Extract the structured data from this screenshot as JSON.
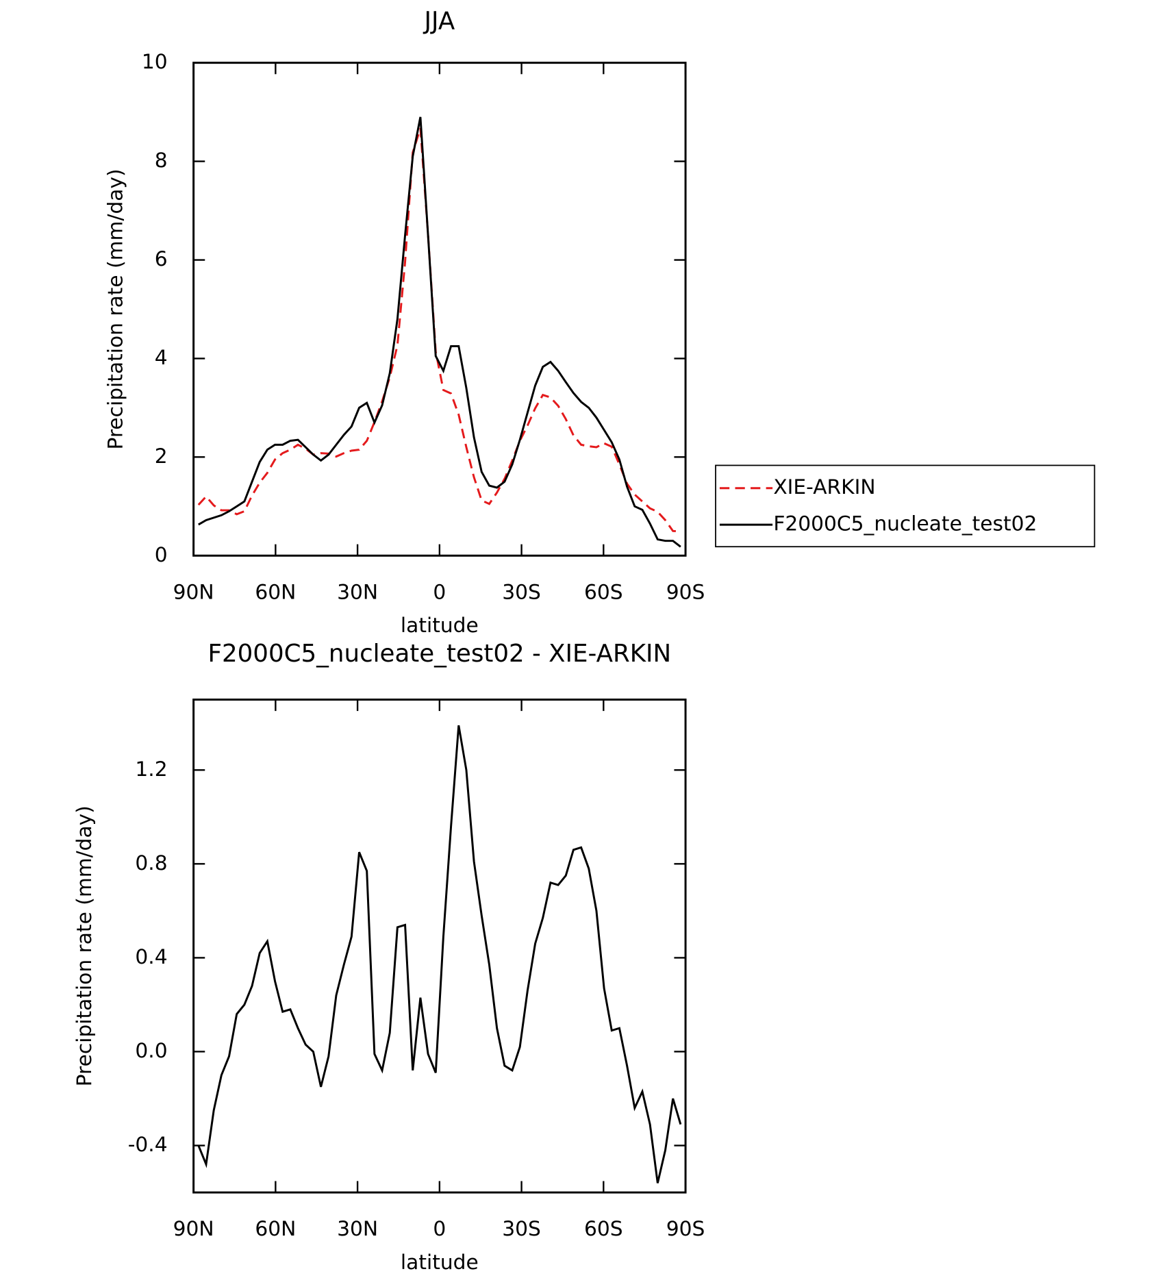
{
  "chart_data": [
    {
      "type": "line",
      "title": "JJA",
      "xlabel": "latitude",
      "ylabel": "Precipitation rate (mm/day)",
      "x": [
        88.2,
        85.4,
        82.6,
        79.8,
        77,
        74.2,
        71.4,
        68.6,
        65.8,
        63,
        60.2,
        57.4,
        54.6,
        51.8,
        49,
        46.2,
        43.4,
        40.6,
        37.8,
        35,
        32.2,
        29.4,
        26.6,
        23.8,
        21,
        18.2,
        15.4,
        12.6,
        9.8,
        7,
        4.2,
        1.4,
        -1.4,
        -4.2,
        -7,
        -9.8,
        -12.6,
        -15.4,
        -18.2,
        -21,
        -23.8,
        -26.6,
        -29.4,
        -32.2,
        -35,
        -37.8,
        -40.6,
        -43.4,
        -46.2,
        -49,
        -51.8,
        -54.6,
        -57.4,
        -60.2,
        -63,
        -65.8,
        -68.6,
        -71.4,
        -74.2,
        -77,
        -79.8,
        -82.6,
        -85.4,
        -88.2
      ],
      "series": [
        {
          "name": "XIE-ARKIN",
          "color": "#e41a1c",
          "line_style": "dashed",
          "values": [
            1.03,
            1.2,
            1.02,
            0.92,
            0.92,
            0.84,
            0.9,
            1.22,
            1.48,
            1.68,
            1.95,
            2.08,
            2.15,
            2.25,
            2.17,
            2.05,
            2.08,
            2.07,
            2.01,
            2.08,
            2.13,
            2.15,
            2.33,
            2.71,
            3.13,
            3.62,
            4.27,
            5.96,
            8.18,
            8.67,
            6.51,
            4.14,
            3.36,
            3.29,
            2.86,
            2.2,
            1.59,
            1.12,
            1.05,
            1.28,
            1.56,
            1.93,
            2.33,
            2.64,
            2.99,
            3.26,
            3.21,
            3.04,
            2.77,
            2.44,
            2.25,
            2.22,
            2.2,
            2.28,
            2.21,
            1.85,
            1.46,
            1.24,
            1.1,
            0.96,
            0.89,
            0.72,
            0.5,
            0.49
          ]
        },
        {
          "name": "F2000C5_nucleate_test02",
          "color": "#000000",
          "line_style": "solid",
          "values": [
            0.63,
            0.72,
            0.77,
            0.82,
            0.9,
            1.0,
            1.1,
            1.5,
            1.9,
            2.15,
            2.25,
            2.25,
            2.33,
            2.35,
            2.2,
            2.05,
            1.93,
            2.05,
            2.25,
            2.45,
            2.62,
            3.0,
            3.1,
            2.7,
            3.05,
            3.7,
            4.8,
            6.5,
            8.1,
            8.9,
            6.5,
            4.05,
            3.75,
            4.25,
            4.25,
            3.4,
            2.4,
            1.7,
            1.42,
            1.38,
            1.5,
            1.85,
            2.35,
            2.9,
            3.45,
            3.83,
            3.93,
            3.75,
            3.52,
            3.3,
            3.12,
            3.0,
            2.8,
            2.55,
            2.3,
            1.95,
            1.4,
            1.0,
            0.93,
            0.65,
            0.33,
            0.3,
            0.3,
            0.18
          ]
        }
      ],
      "xlim": [
        90,
        -90
      ],
      "xticks": [
        {
          "value": 90,
          "label": "90N"
        },
        {
          "value": 60,
          "label": "60N"
        },
        {
          "value": 30,
          "label": "30N"
        },
        0,
        {
          "value": -30,
          "label": "30S"
        },
        {
          "value": -60,
          "label": "60S"
        },
        {
          "value": -90,
          "label": "90S"
        }
      ],
      "ylim": [
        0,
        10
      ],
      "yticks": [
        0,
        2,
        4,
        6,
        8,
        10
      ],
      "legend": "right"
    },
    {
      "type": "line",
      "title": "F2000C5_nucleate_test02 - XIE-ARKIN",
      "xlabel": "latitude",
      "ylabel": "Precipitation rate (mm/day)",
      "x": [
        88.2,
        85.4,
        82.6,
        79.8,
        77,
        74.2,
        71.4,
        68.6,
        65.8,
        63,
        60.2,
        57.4,
        54.6,
        51.8,
        49,
        46.2,
        43.4,
        40.6,
        37.8,
        35,
        32.2,
        29.4,
        26.6,
        23.8,
        21,
        18.2,
        15.4,
        12.6,
        9.8,
        7,
        4.2,
        1.4,
        -1.4,
        -4.2,
        -7,
        -9.8,
        -12.6,
        -15.4,
        -18.2,
        -21,
        -23.8,
        -26.6,
        -29.4,
        -32.2,
        -35,
        -37.8,
        -40.6,
        -43.4,
        -46.2,
        -49,
        -51.8,
        -54.6,
        -57.4,
        -60.2,
        -63,
        -65.8,
        -68.6,
        -71.4,
        -74.2,
        -77,
        -79.8,
        -82.6,
        -85.4,
        -88.2
      ],
      "series": [
        {
          "color": "#000000",
          "line_style": "solid",
          "values": [
            -0.4,
            -0.48,
            -0.25,
            -0.1,
            -0.02,
            0.16,
            0.2,
            0.28,
            0.42,
            0.47,
            0.3,
            0.17,
            0.18,
            0.1,
            0.03,
            0.0,
            -0.15,
            -0.02,
            0.24,
            0.37,
            0.49,
            0.85,
            0.77,
            -0.01,
            -0.08,
            0.08,
            0.53,
            0.54,
            -0.08,
            0.23,
            -0.01,
            -0.09,
            0.49,
            0.96,
            1.39,
            1.2,
            0.81,
            0.58,
            0.37,
            0.1,
            -0.06,
            -0.08,
            0.02,
            0.26,
            0.46,
            0.57,
            0.72,
            0.71,
            0.75,
            0.86,
            0.87,
            0.78,
            0.6,
            0.27,
            0.09,
            0.1,
            -0.06,
            -0.24,
            -0.17,
            -0.31,
            -0.56,
            -0.42,
            -0.2,
            -0.31
          ]
        }
      ],
      "xlim": [
        90,
        -90
      ],
      "xticks": [
        {
          "value": 90,
          "label": "90N"
        },
        {
          "value": 60,
          "label": "60N"
        },
        {
          "value": 30,
          "label": "30N"
        },
        0,
        {
          "value": -30,
          "label": "30S"
        },
        {
          "value": -60,
          "label": "60S"
        },
        {
          "value": -90,
          "label": "90S"
        }
      ],
      "ylim": [
        -0.6,
        1.5
      ],
      "yticks": [
        -0.4,
        {
          "value": 0,
          "label": "0.0"
        },
        0.4,
        0.8,
        1.2
      ]
    }
  ]
}
